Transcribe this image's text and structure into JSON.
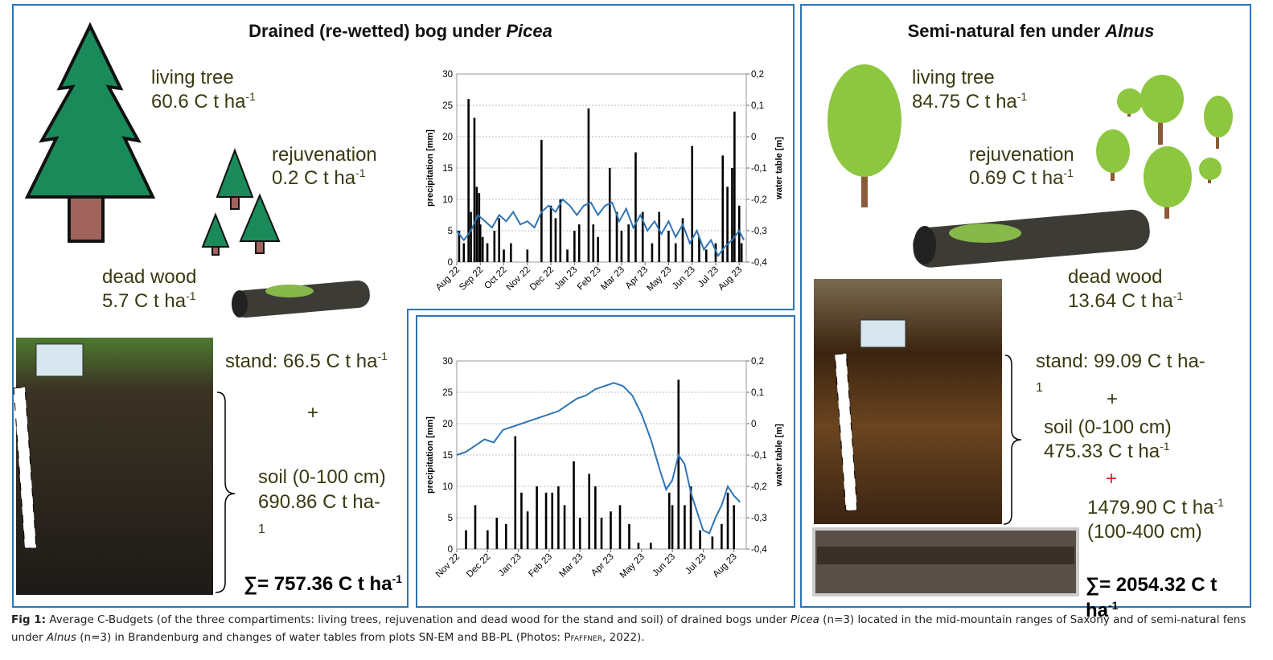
{
  "left": {
    "title": {
      "plain": "Drained (re-wetted) bog under ",
      "italic": "Picea"
    },
    "living_tree": {
      "label": "living tree",
      "value": {
        "text": "60.6 C t ha",
        "sup": "-1"
      }
    },
    "rejuvenation": {
      "label": "rejuvenation",
      "value": {
        "text": "0.2 C t ha",
        "sup": "-1"
      }
    },
    "dead_wood": {
      "label": "dead wood",
      "value": {
        "text": "5.7 C t ha",
        "sup": "-1"
      }
    },
    "stand": {
      "text": "stand: 66.5 C t ha",
      "sup": "-1"
    },
    "plus": "+",
    "soil": {
      "text": "soil (0-100 cm) 690.86 C t ha-",
      "sup": "1"
    },
    "sum": {
      "text": "∑= 757.36 C t ha",
      "sup": "-1"
    }
  },
  "right": {
    "title": {
      "plain": "Semi-natural fen under ",
      "italic": "Alnus"
    },
    "living_tree": {
      "label": "living tree",
      "value": {
        "text": "84.75 C t ha",
        "sup": "-1"
      }
    },
    "rejuvenation": {
      "label": "rejuvenation",
      "value": {
        "text": "0.69 C t ha",
        "sup": "-1"
      }
    },
    "dead_wood": {
      "label": "dead wood",
      "value": {
        "text": "13.64 C t ha",
        "sup": "-1"
      }
    },
    "stand": {
      "text": "stand: 99.09 C t ha-",
      "sup": "1"
    },
    "plus": "+",
    "soil": {
      "label": "soil (0-100 cm)",
      "text": "475.33 C t ha",
      "sup": "-1"
    },
    "plus_deep": "+",
    "deep": {
      "text": "1479.90 C t ha",
      "sup": "-1",
      "depth": "(100-400 cm)"
    },
    "sum": {
      "text": "∑= 2054.32 C t ha",
      "sup": "-1"
    }
  },
  "chart_data": [
    {
      "type": "combo",
      "ylabel": "precipitation [mm]",
      "y2label": "water table [m]",
      "xlim": [
        0,
        12.3
      ],
      "xticks": [
        {
          "value": 0,
          "label": "Aug 22"
        },
        {
          "value": 1,
          "label": "Sep 22"
        },
        {
          "value": 2,
          "label": "Oct 22"
        },
        {
          "value": 3,
          "label": "Nov 22"
        },
        {
          "value": 4,
          "label": "Dec 22"
        },
        {
          "value": 5,
          "label": "Jan 23"
        },
        {
          "value": 6,
          "label": "Feb 23"
        },
        {
          "value": 7,
          "label": "Mar 23"
        },
        {
          "value": 8,
          "label": "Apr 23"
        },
        {
          "value": 9,
          "label": "May 23"
        },
        {
          "value": 10,
          "label": "Jun 23"
        },
        {
          "value": 11,
          "label": "Jul 23"
        },
        {
          "value": 12,
          "label": "Aug 23"
        }
      ],
      "ylim": [
        0,
        30
      ],
      "yticks": [
        0,
        5,
        10,
        15,
        20,
        25,
        30
      ],
      "y2lim": [
        -0.4,
        0.2
      ],
      "y2ticks": [
        {
          "value": -0.4,
          "label": "-0,4"
        },
        {
          "value": -0.3,
          "label": "-0,3"
        },
        {
          "value": -0.2,
          "label": "-0,2"
        },
        {
          "value": -0.1,
          "label": "-0,1"
        },
        {
          "value": 0,
          "label": "0"
        },
        {
          "value": 0.1,
          "label": "0,1"
        },
        {
          "value": 0.2,
          "label": "0,2"
        }
      ],
      "grid": true,
      "series": [
        {
          "type": "bar",
          "color": "#000000",
          "x": [
            0.1,
            0.3,
            0.5,
            0.6,
            0.75,
            0.85,
            0.95,
            1.0,
            1.1,
            1.3,
            1.6,
            1.8,
            2.0,
            2.3,
            3.0,
            3.6,
            4.0,
            4.2,
            4.4,
            4.7,
            5.0,
            5.2,
            5.6,
            5.8,
            6.0,
            6.5,
            6.8,
            7.0,
            7.3,
            7.6,
            7.9,
            8.3,
            8.6,
            9.0,
            9.3,
            9.6,
            10.0,
            10.3,
            10.6,
            11.0,
            11.3,
            11.5,
            11.7,
            11.8,
            12.0,
            12.1
          ],
          "values": [
            5,
            3,
            26,
            8,
            23,
            12,
            11,
            6,
            4,
            3,
            5,
            7,
            2,
            3,
            2,
            19.5,
            9,
            7,
            10,
            2,
            5,
            6,
            24.5,
            6,
            4,
            15,
            8,
            5,
            6,
            17.5,
            8,
            3,
            8,
            5,
            3,
            7,
            18.5,
            4,
            2,
            3,
            17,
            12,
            15,
            24,
            9,
            3
          ]
        },
        {
          "type": "line",
          "axis": "y2",
          "color": "#2e75b6",
          "x": [
            0,
            0.3,
            0.6,
            0.9,
            1.2,
            1.5,
            1.8,
            2.1,
            2.4,
            2.7,
            3.0,
            3.3,
            3.6,
            3.9,
            4.2,
            4.5,
            4.8,
            5.1,
            5.4,
            5.7,
            6.0,
            6.3,
            6.6,
            6.9,
            7.2,
            7.5,
            7.8,
            8.1,
            8.4,
            8.7,
            9.0,
            9.3,
            9.6,
            9.9,
            10.2,
            10.5,
            10.8,
            11.1,
            11.4,
            11.7,
            12.0,
            12.2
          ],
          "values": [
            -0.3,
            -0.33,
            -0.3,
            -0.25,
            -0.27,
            -0.29,
            -0.25,
            -0.27,
            -0.24,
            -0.28,
            -0.27,
            -0.29,
            -0.24,
            -0.22,
            -0.24,
            -0.2,
            -0.22,
            -0.25,
            -0.22,
            -0.21,
            -0.25,
            -0.22,
            -0.21,
            -0.27,
            -0.23,
            -0.29,
            -0.25,
            -0.3,
            -0.27,
            -0.31,
            -0.27,
            -0.32,
            -0.28,
            -0.34,
            -0.3,
            -0.36,
            -0.33,
            -0.38,
            -0.35,
            -0.33,
            -0.3,
            -0.33
          ]
        }
      ]
    },
    {
      "type": "combo",
      "ylabel": "precipitation [mm]",
      "y2label": "water table [m]",
      "xlim": [
        0,
        9.4
      ],
      "xticks": [
        {
          "value": 0,
          "label": "Nov 22"
        },
        {
          "value": 1,
          "label": "Dec 22"
        },
        {
          "value": 2,
          "label": "Jan 23"
        },
        {
          "value": 3,
          "label": "Feb 23"
        },
        {
          "value": 4,
          "label": "Mar 23"
        },
        {
          "value": 5,
          "label": "Apr 23"
        },
        {
          "value": 6,
          "label": "May 23"
        },
        {
          "value": 7,
          "label": "Jun 23"
        },
        {
          "value": 8,
          "label": "Jul 23"
        },
        {
          "value": 9,
          "label": "Aug 23"
        }
      ],
      "ylim": [
        0,
        30
      ],
      "yticks": [
        0,
        5,
        10,
        15,
        20,
        25,
        30
      ],
      "y2lim": [
        -0.4,
        0.2
      ],
      "y2ticks": [
        {
          "value": -0.4,
          "label": "-0,4"
        },
        {
          "value": -0.3,
          "label": "-0,3"
        },
        {
          "value": -0.2,
          "label": "-0,2"
        },
        {
          "value": -0.1,
          "label": "-0,1"
        },
        {
          "value": 0,
          "label": "0"
        },
        {
          "value": 0.1,
          "label": "0,1"
        },
        {
          "value": 0.2,
          "label": "0,2"
        }
      ],
      "grid": true,
      "series": [
        {
          "type": "bar",
          "color": "#000000",
          "x": [
            0.3,
            0.6,
            1.0,
            1.3,
            1.6,
            1.9,
            2.1,
            2.3,
            2.6,
            2.9,
            3.1,
            3.3,
            3.5,
            3.8,
            4.0,
            4.3,
            4.5,
            4.7,
            5.0,
            5.3,
            5.6,
            5.9,
            6.3,
            6.9,
            7.0,
            7.2,
            7.4,
            7.6,
            7.9,
            8.3,
            8.6,
            8.8,
            9.0
          ],
          "values": [
            3,
            7,
            3,
            5,
            4,
            18,
            9,
            6,
            10,
            9,
            9,
            10,
            7,
            14,
            5,
            12,
            10,
            5,
            6,
            7,
            4,
            1,
            1,
            9,
            7,
            27,
            7,
            10,
            3,
            2,
            4,
            9,
            7
          ]
        },
        {
          "type": "line",
          "axis": "y2",
          "color": "#2e75b6",
          "x": [
            0,
            0.3,
            0.6,
            0.9,
            1.2,
            1.5,
            1.8,
            2.1,
            2.4,
            2.7,
            3.0,
            3.3,
            3.6,
            3.9,
            4.2,
            4.5,
            4.8,
            5.1,
            5.4,
            5.7,
            6.0,
            6.3,
            6.6,
            6.8,
            7.0,
            7.2,
            7.4,
            7.6,
            7.8,
            8.0,
            8.2,
            8.4,
            8.6,
            8.8,
            9.0,
            9.2
          ],
          "values": [
            -0.1,
            -0.09,
            -0.07,
            -0.05,
            -0.06,
            -0.02,
            -0.01,
            0.0,
            0.01,
            0.02,
            0.03,
            0.04,
            0.06,
            0.08,
            0.09,
            0.11,
            0.12,
            0.13,
            0.12,
            0.09,
            0.03,
            -0.05,
            -0.15,
            -0.21,
            -0.18,
            -0.1,
            -0.13,
            -0.22,
            -0.28,
            -0.34,
            -0.35,
            -0.3,
            -0.26,
            -0.2,
            -0.23,
            -0.25
          ]
        }
      ]
    }
  ],
  "caption": {
    "parts": [
      {
        "text": "Fig 1:"
      },
      {
        "text": "  Average C-Budgets (of the three compartiments: living trees, rejuvenation and dead wood for the stand and soil) of drained bogs under "
      },
      {
        "text": "Picea"
      },
      {
        "text": " (n=3) located in the mid-mountain ranges of Saxony and of semi-natural fens under "
      },
      {
        "text": "Alnus"
      },
      {
        "text": " (n=3) in Brandenburg and changes of water tables from plots SN-EM and BB-PL (Photos: "
      },
      {
        "text": "Pfaffner"
      },
      {
        "text": ", 2022)."
      }
    ]
  }
}
